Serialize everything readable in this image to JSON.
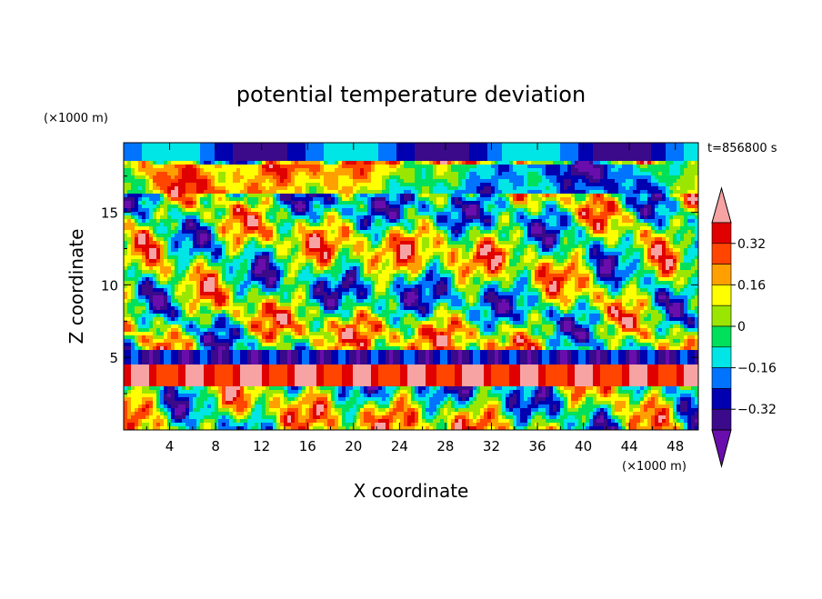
{
  "chart_data": {
    "type": "heatmap",
    "title": "potential temperature deviation",
    "xlabel": "X coordinate",
    "ylabel": "Z coordinate",
    "x_unit": "(×1000 m)",
    "y_unit": "(×1000 m)",
    "time_label": "t=856800 s",
    "xlim": [
      0,
      50
    ],
    "ylim": [
      0,
      19.8
    ],
    "x_ticks": [
      "4",
      "8",
      "12",
      "16",
      "20",
      "24",
      "28",
      "32",
      "36",
      "40",
      "44",
      "48"
    ],
    "y_ticks": [
      "5",
      "10",
      "15"
    ],
    "colorbar": {
      "levels": [
        -0.4,
        -0.32,
        -0.24,
        -0.16,
        -0.08,
        0,
        0.08,
        0.16,
        0.24,
        0.32,
        0.4
      ],
      "tick_labels": [
        "0.32",
        "0.16",
        "0",
        "−0.16",
        "−0.32"
      ],
      "colors": [
        "#6a0dad",
        "#3a0a8a",
        "#0000b0",
        "#0073ff",
        "#00e5e5",
        "#00e05a",
        "#9be600",
        "#ffff00",
        "#ffa000",
        "#ff4500",
        "#e00000",
        "#f7a3a3"
      ]
    }
  }
}
